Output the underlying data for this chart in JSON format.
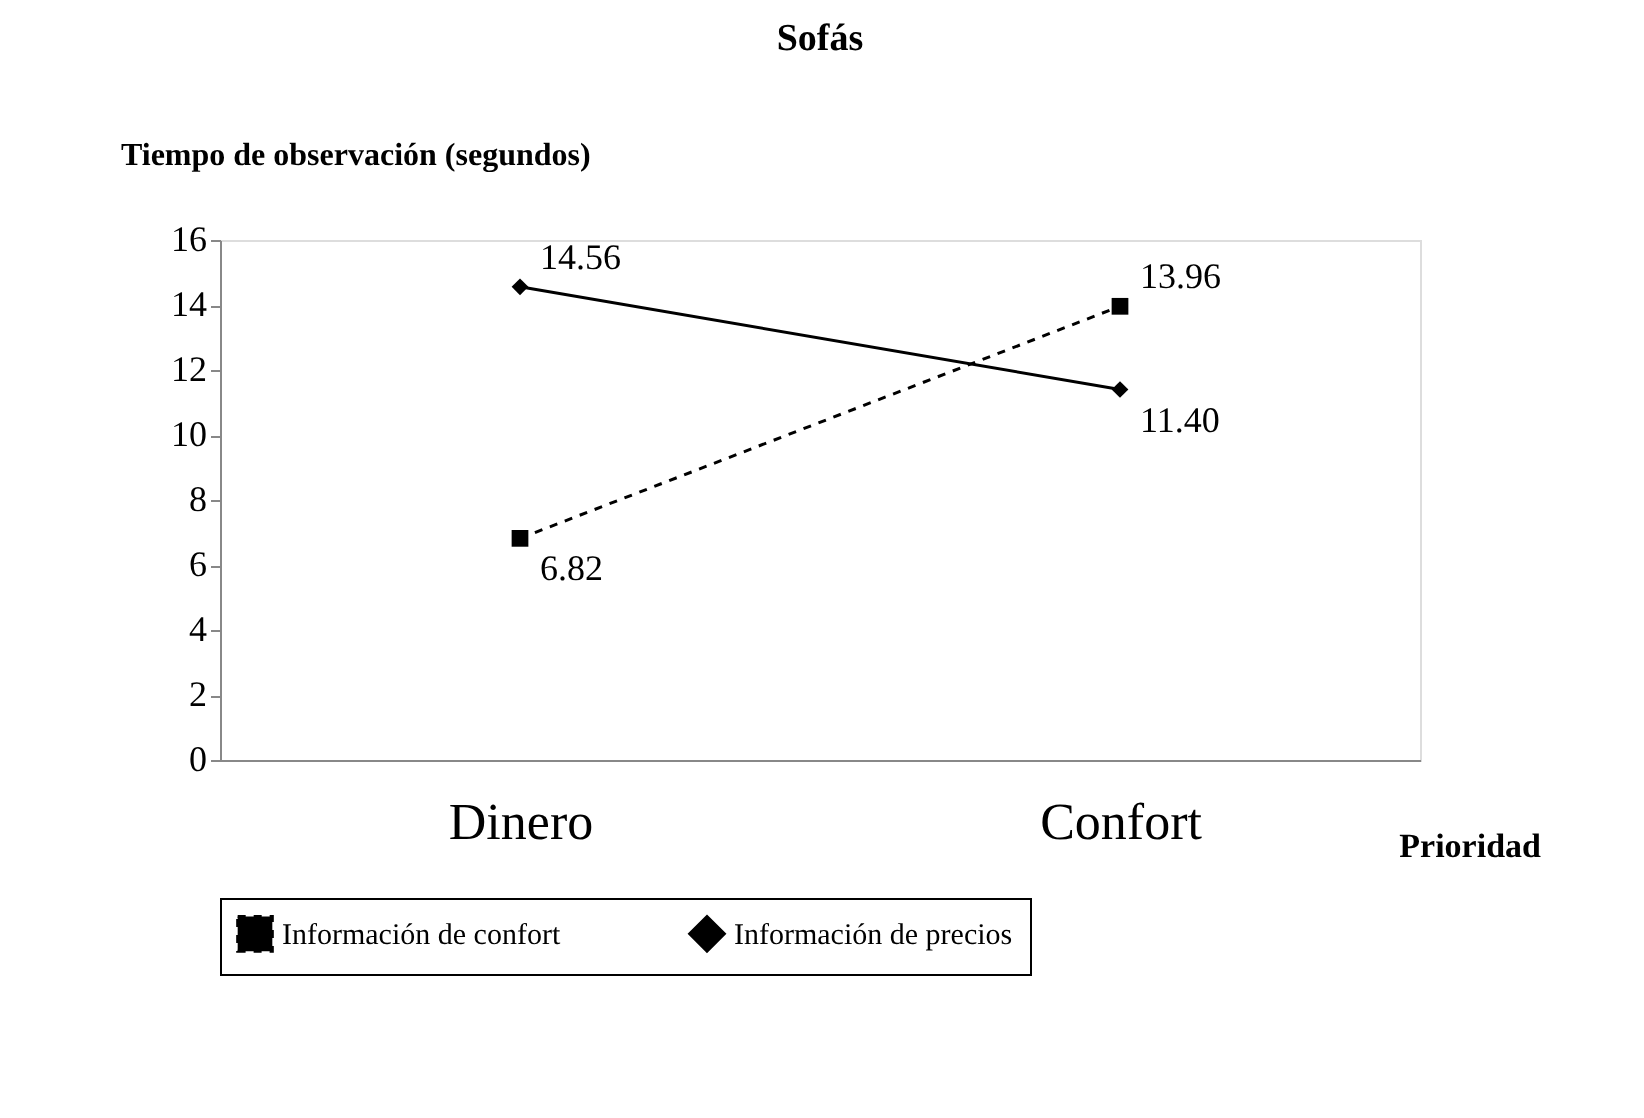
{
  "chart_data": {
    "type": "line",
    "title": "Sofás",
    "xlabel": "Prioridad",
    "ylabel": "Tiempo de observación (segundos)",
    "categories": [
      "Dinero",
      "Confort"
    ],
    "series": [
      {
        "name": "Información de confort",
        "color": "#000000",
        "values": [
          6.82,
          13.96
        ],
        "value_labels": [
          "6.82",
          "13.96"
        ],
        "marker": "square",
        "line_style": "dashed"
      },
      {
        "name": "Información de precios",
        "color": "#000000",
        "values": [
          14.56,
          11.4
        ],
        "value_labels": [
          "14.56",
          "11.40"
        ],
        "marker": "diamond",
        "line_style": "solid"
      }
    ],
    "ylim": [
      0,
      16
    ],
    "yticks": [
      0,
      2,
      4,
      6,
      8,
      10,
      12,
      14,
      16
    ],
    "grid": false,
    "legend": "bottom"
  }
}
